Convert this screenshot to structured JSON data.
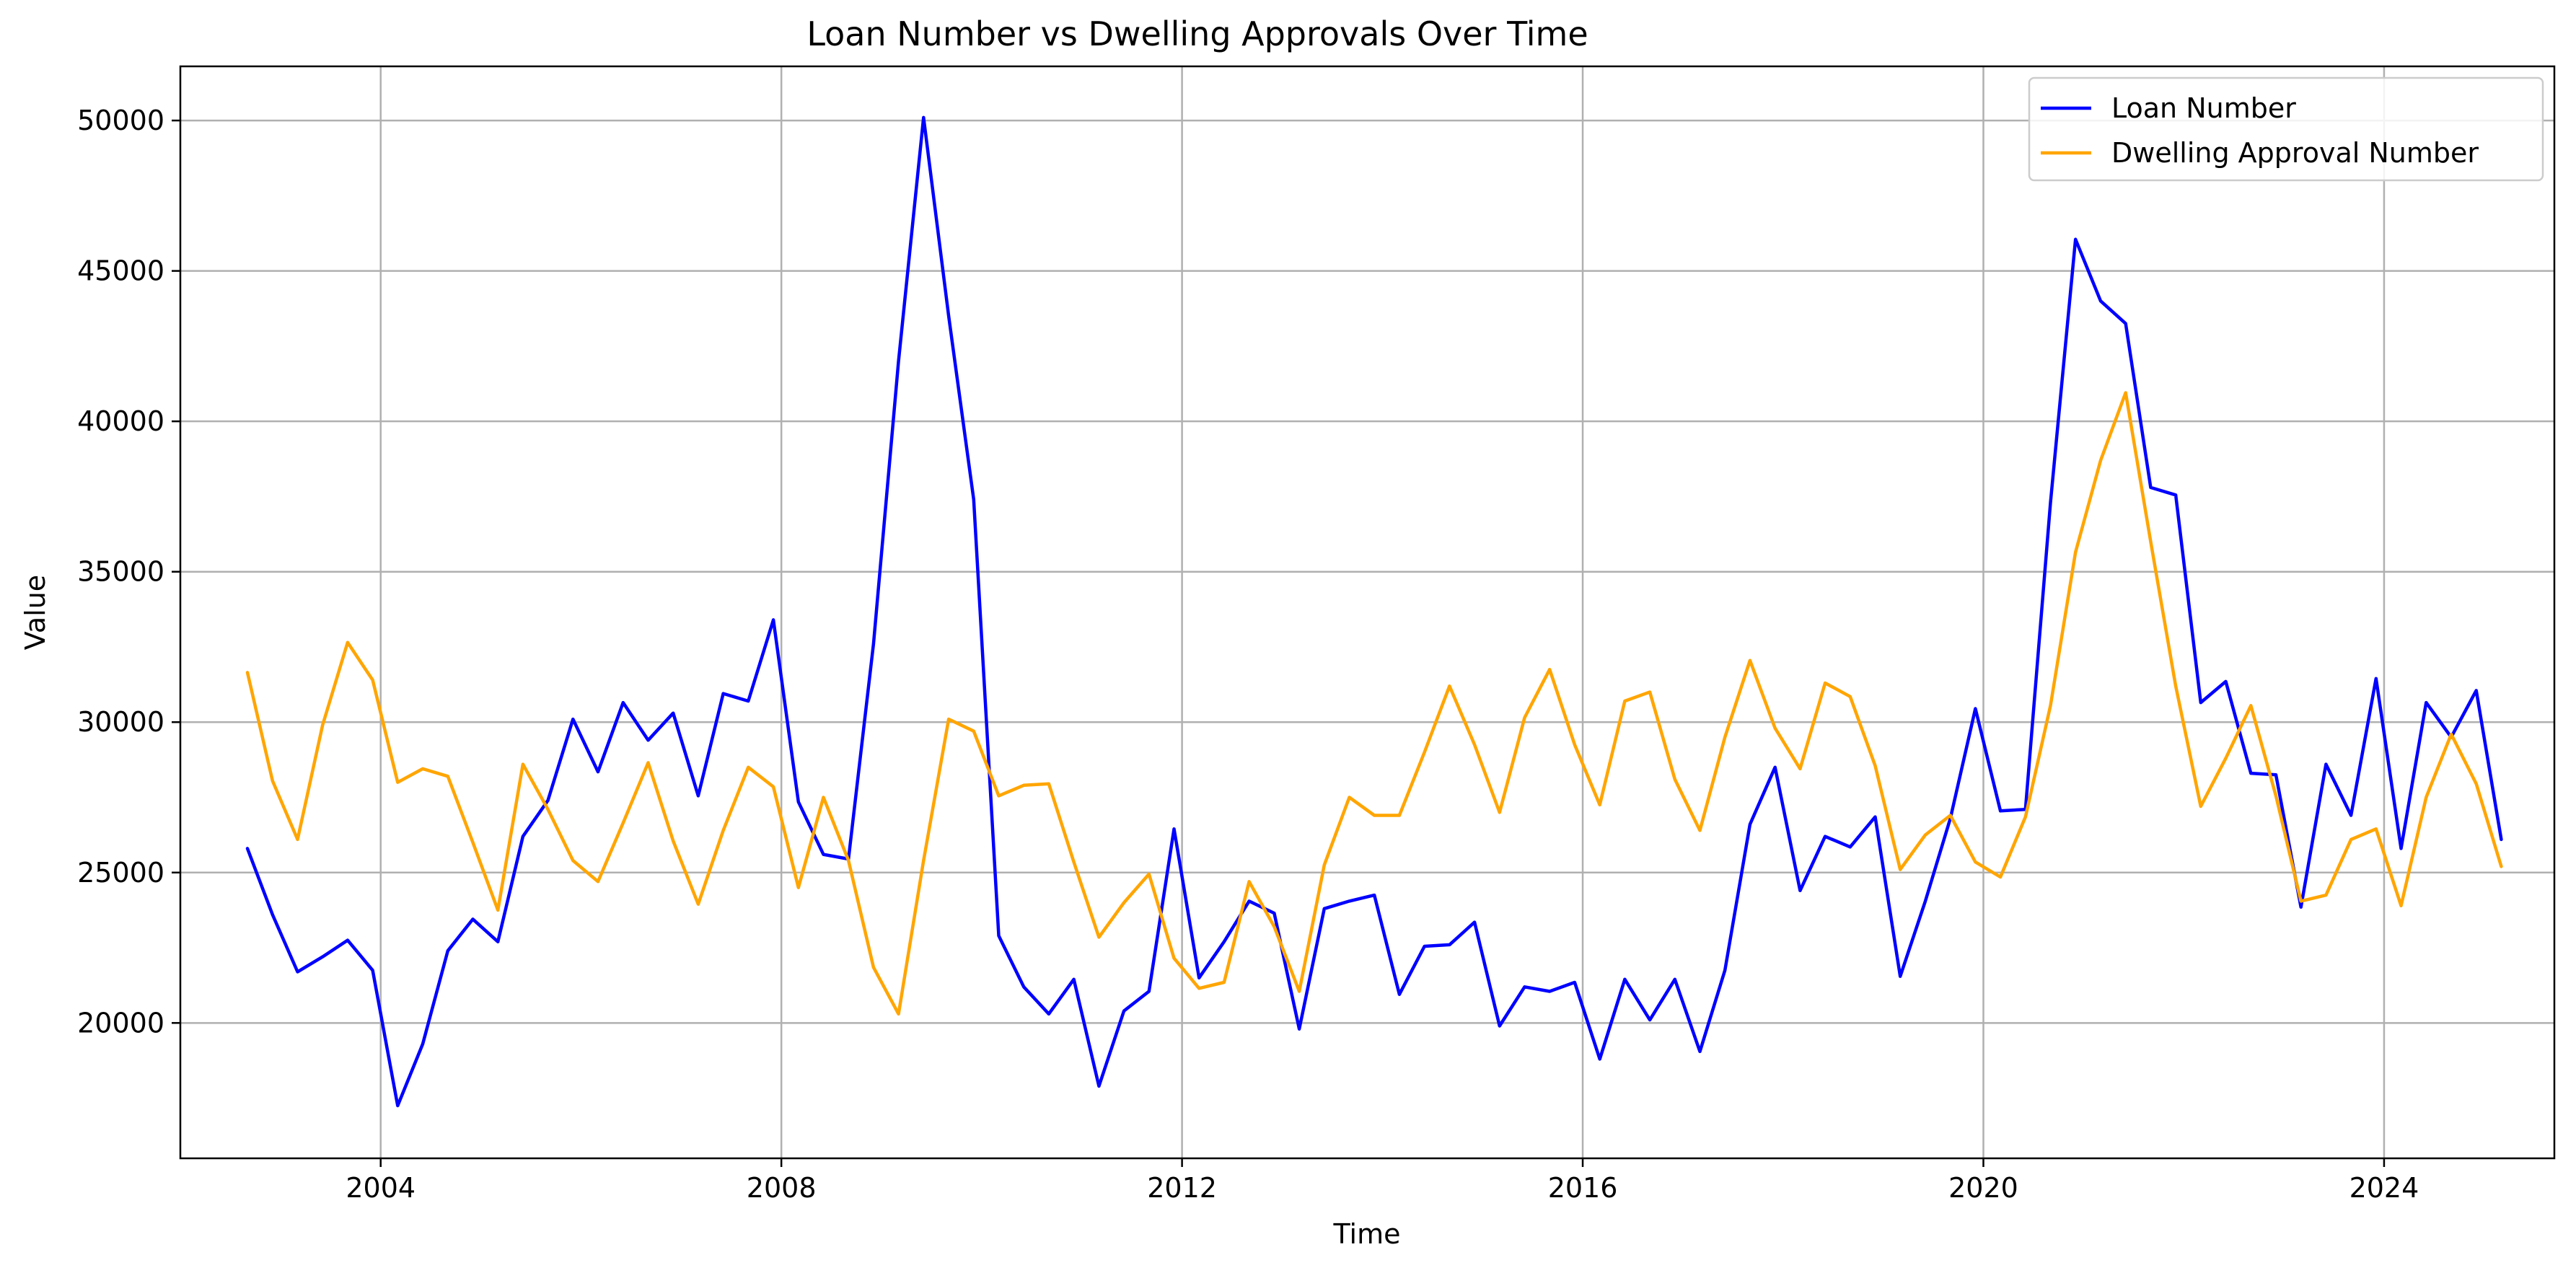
{
  "chart_data": {
    "type": "line",
    "title": "Loan Number vs Dwelling Approvals Over Time",
    "xlabel": "Time",
    "ylabel": "Value",
    "xlim": [
      2002.0,
      2025.7
    ],
    "ylim": [
      15500,
      51800
    ],
    "x_ticks": [
      2004,
      2008,
      2012,
      2016,
      2020,
      2024
    ],
    "y_ticks": [
      20000,
      25000,
      30000,
      35000,
      40000,
      45000,
      50000
    ],
    "grid": true,
    "legend_position": "upper right",
    "x": [
      2002.67,
      2002.92,
      2003.17,
      2003.42,
      2003.67,
      2003.92,
      2004.17,
      2004.42,
      2004.67,
      2004.92,
      2005.17,
      2005.42,
      2005.67,
      2005.92,
      2006.17,
      2006.42,
      2006.67,
      2006.92,
      2007.17,
      2007.42,
      2007.67,
      2007.92,
      2008.17,
      2008.42,
      2008.67,
      2008.92,
      2009.17,
      2009.42,
      2009.67,
      2009.92,
      2010.17,
      2010.42,
      2010.67,
      2010.92,
      2011.17,
      2011.42,
      2011.67,
      2011.92,
      2012.17,
      2012.42,
      2012.67,
      2012.92,
      2013.17,
      2013.42,
      2013.67,
      2013.92,
      2014.17,
      2014.42,
      2014.67,
      2014.92,
      2015.17,
      2015.42,
      2015.67,
      2015.92,
      2016.17,
      2016.42,
      2016.67,
      2016.92,
      2017.17,
      2017.42,
      2017.67,
      2017.92,
      2018.17,
      2018.42,
      2018.67,
      2018.92,
      2019.17,
      2019.42,
      2019.67,
      2019.92,
      2020.17,
      2020.42,
      2020.67,
      2020.92,
      2021.17,
      2021.42,
      2021.67,
      2021.92,
      2022.17,
      2022.42,
      2022.67,
      2022.92,
      2023.17,
      2023.42,
      2023.67,
      2023.92,
      2024.17,
      2024.42,
      2024.67,
      2024.92,
      2025.17
    ],
    "series": [
      {
        "name": "Loan Number",
        "color": "#0000ff",
        "values": [
          25800,
          23600,
          21700,
          22200,
          22750,
          21750,
          17250,
          19300,
          22400,
          23450,
          22700,
          26200,
          27400,
          30100,
          28350,
          30650,
          29400,
          30300,
          27550,
          30950,
          30700,
          33400,
          27350,
          25600,
          25450,
          32600,
          42000,
          50100,
          43500,
          37400,
          22900,
          21200,
          20300,
          21450,
          17900,
          20400,
          21050,
          26450,
          21500,
          22700,
          24050,
          23650,
          19800,
          23800,
          24050,
          24250,
          20950,
          22550,
          22600,
          23350,
          19900,
          21200,
          21050,
          21350,
          18800,
          21450,
          20100,
          21450,
          19050,
          21750,
          26600,
          28500,
          24400,
          26200,
          25850,
          26850,
          21550,
          24050,
          26800,
          30450,
          27050,
          27100,
          37300,
          46050,
          44000,
          43250,
          37800,
          37550,
          30650,
          31350,
          28300,
          28250,
          23850,
          28600,
          26900,
          31450,
          25800,
          30650,
          29500,
          31050,
          26100
        ]
      },
      {
        "name": "Dwelling Approval Number",
        "color": "#ffa500",
        "values": [
          31650,
          28050,
          26100,
          29900,
          32650,
          31400,
          28000,
          28450,
          28200,
          26000,
          23750,
          28600,
          27100,
          25400,
          24700,
          26650,
          28650,
          26050,
          23950,
          26400,
          28500,
          27850,
          24500,
          27500,
          25400,
          21850,
          20300,
          25400,
          30100,
          29700,
          27550,
          27900,
          27950,
          25350,
          22850,
          24000,
          24950,
          22150,
          21150,
          21350,
          24700,
          23200,
          21050,
          25250,
          27500,
          26900,
          26900,
          29000,
          31200,
          29250,
          27000,
          30150,
          31750,
          29250,
          27250,
          30700,
          31000,
          28100,
          26400,
          29500,
          32050,
          29800,
          28450,
          31300,
          30850,
          28550,
          25100,
          26250,
          26900,
          25350,
          24850,
          26850,
          30550,
          35650,
          38700,
          40950,
          36000,
          31200,
          27200,
          28800,
          30550,
          27550,
          24050,
          24250,
          26100,
          26450,
          23900,
          27500,
          29600,
          27950,
          25200
        ]
      }
    ]
  }
}
